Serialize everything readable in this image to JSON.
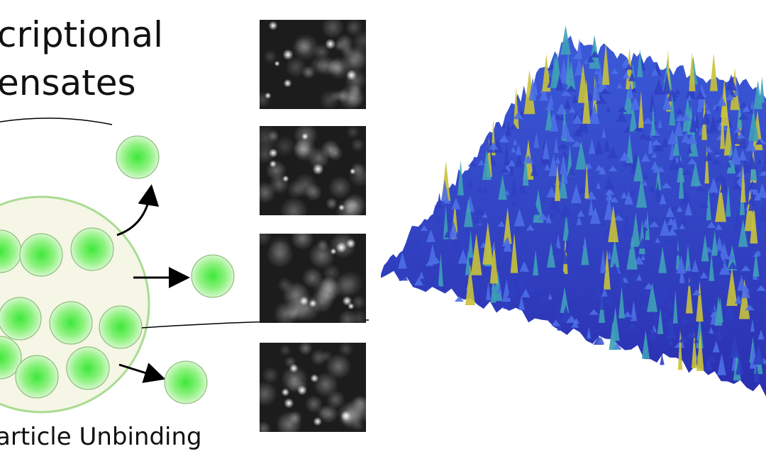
{
  "title": {
    "lines": [
      "criptional",
      "ensates"
    ]
  },
  "caption": "article Unbinding"
}
